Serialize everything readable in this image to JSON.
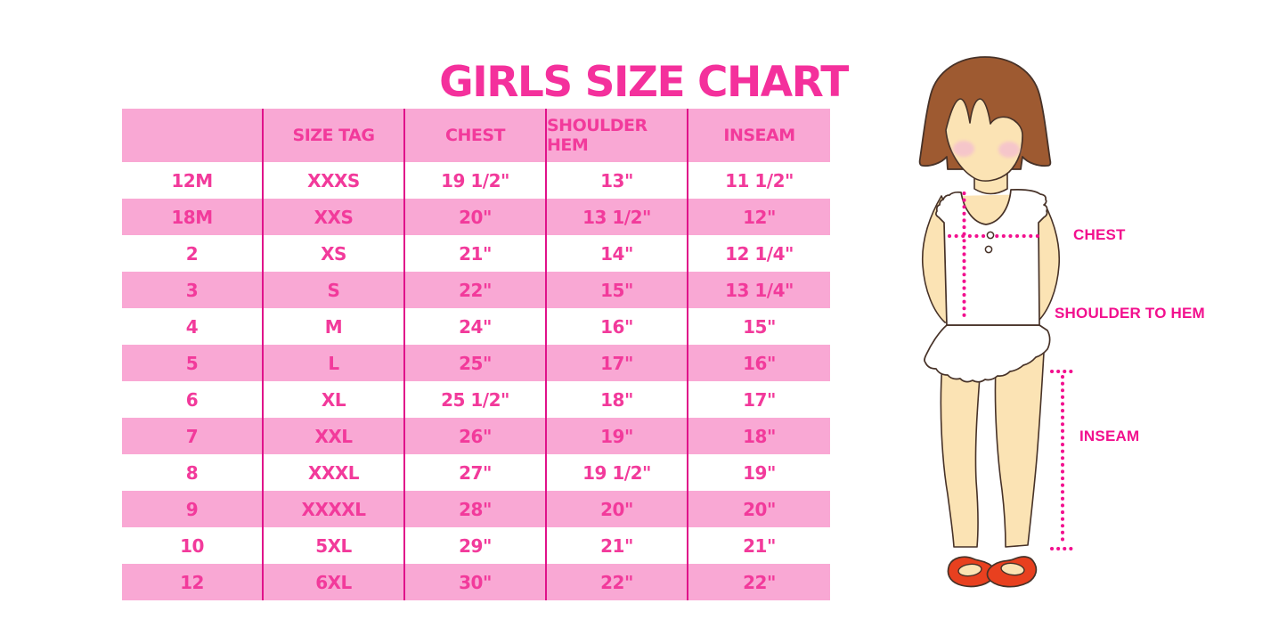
{
  "title": "GIRLS SIZE CHART",
  "chart_data": {
    "type": "table",
    "title": "GIRLS SIZE CHART",
    "columns": [
      "",
      "SIZE TAG",
      "CHEST",
      "SHOULDER HEM",
      "INSEAM"
    ],
    "rows": [
      [
        "12M",
        "XXXS",
        "19 1/2\"",
        "13\"",
        "11 1/2\""
      ],
      [
        "18M",
        "XXS",
        "20\"",
        "13 1/2\"",
        "12\""
      ],
      [
        "2",
        "XS",
        "21\"",
        "14\"",
        "12 1/4\""
      ],
      [
        "3",
        "S",
        "22\"",
        "15\"",
        "13 1/4\""
      ],
      [
        "4",
        "M",
        "24\"",
        "16\"",
        "15\""
      ],
      [
        "5",
        "L",
        "25\"",
        "17\"",
        "16\""
      ],
      [
        "6",
        "XL",
        "25 1/2\"",
        "18\"",
        "17\""
      ],
      [
        "7",
        "XXL",
        "26\"",
        "19\"",
        "18\""
      ],
      [
        "8",
        "XXXL",
        "27\"",
        "19 1/2\"",
        "19\""
      ],
      [
        "9",
        "XXXXL",
        "28\"",
        "20\"",
        "20\""
      ],
      [
        "10",
        "5XL",
        "29\"",
        "21\"",
        "21\""
      ],
      [
        "12",
        "6XL",
        "30\"",
        "22\"",
        "22\""
      ]
    ],
    "row_striping": "header pink, then rows alternate white/pink starting with white",
    "grid": "vertical magenta column dividers only, no horizontal borders"
  },
  "figure": {
    "description": "illustrated girl with bob haircut, white ruffled top and skirt, red mary-jane shoes, dotted measurement guides",
    "labels": {
      "chest": "CHEST",
      "shoulder_to_hem": "SHOULDER TO HEM",
      "inseam": "INSEAM"
    }
  },
  "colors": {
    "title_pink": "#F4309C",
    "row_pink": "#F9A8D4",
    "cell_text_pink": "#F23A9B",
    "divider_pink": "#E0128A",
    "label_magenta": "#F2108E",
    "hair_brown": "#9E5A31",
    "skin": "#FBE3B4",
    "blush": "#F5C3CD",
    "shoe_red": "#E8401F",
    "outline": "#473228"
  }
}
